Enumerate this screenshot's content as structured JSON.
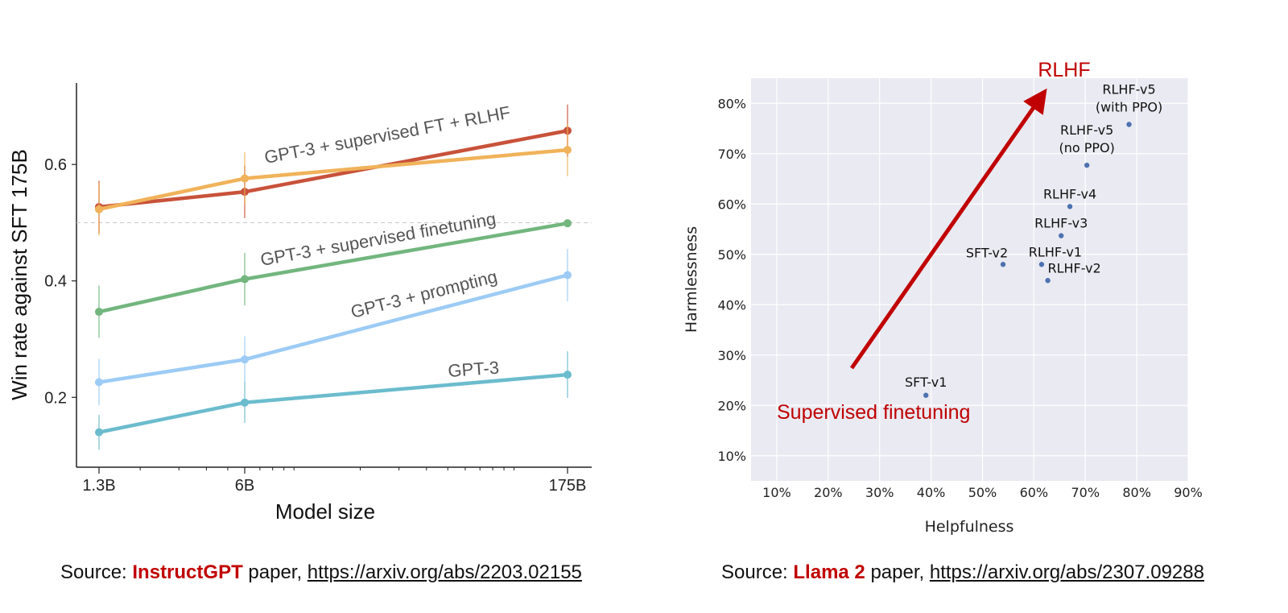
{
  "chart_data": [
    {
      "type": "line",
      "xlabel": "Model size",
      "ylabel": "Win rate against SFT 175B",
      "x": [
        "1.3B",
        "6B",
        "175B"
      ],
      "x_scale": "log",
      "ylim": [
        0.08,
        0.74
      ],
      "yticks": [
        "0.2",
        "0.4",
        "0.6"
      ],
      "reference_line": 0.5,
      "series": [
        {
          "name": "GPT-3 + supervised FT + RLHF",
          "color": "#c8523a",
          "values": [
            0.527,
            0.553,
            0.658
          ],
          "errors": [
            0.045,
            0.045,
            0.045
          ]
        },
        {
          "name": "",
          "color": "#f0b25a",
          "values": [
            0.523,
            0.576,
            0.625
          ],
          "errors": [
            0.045,
            0.045,
            0.045
          ]
        },
        {
          "name": "GPT-3 + supervised finetuning",
          "color": "#72b67e",
          "values": [
            0.347,
            0.403,
            0.499
          ],
          "errors": [
            0.045,
            0.045,
            0.0
          ]
        },
        {
          "name": "GPT-3 + prompting",
          "color": "#9ccbf5",
          "values": [
            0.226,
            0.265,
            0.41
          ],
          "errors": [
            0.04,
            0.04,
            0.045
          ]
        },
        {
          "name": "GPT-3",
          "color": "#6bbccd",
          "values": [
            0.14,
            0.191,
            0.239
          ],
          "errors": [
            0.03,
            0.035,
            0.04
          ]
        }
      ]
    },
    {
      "type": "scatter",
      "xlabel": "Helpfulness",
      "ylabel": "Harmlessness",
      "xlim": [
        0.05,
        0.9
      ],
      "ylim": [
        0.05,
        0.85
      ],
      "xticks": [
        "10%",
        "20%",
        "30%",
        "40%",
        "50%",
        "60%",
        "70%",
        "80%",
        "90%"
      ],
      "yticks": [
        "10%",
        "20%",
        "30%",
        "40%",
        "50%",
        "60%",
        "70%",
        "80%"
      ],
      "grid": true,
      "points": [
        {
          "label": "SFT-v1",
          "x": 0.39,
          "y": 0.22
        },
        {
          "label": "SFT-v2",
          "x": 0.54,
          "y": 0.48
        },
        {
          "label": "RLHF-v1",
          "x": 0.615,
          "y": 0.48
        },
        {
          "label": "RLHF-v2",
          "x": 0.627,
          "y": 0.448
        },
        {
          "label": "RLHF-v3",
          "x": 0.653,
          "y": 0.537
        },
        {
          "label": "RLHF-v4",
          "x": 0.67,
          "y": 0.595
        },
        {
          "label": "RLHF-v5 (no PPO)",
          "label_lines": [
            "RLHF-v5",
            "(no PPO)"
          ],
          "x": 0.703,
          "y": 0.677
        },
        {
          "label": "RLHF-v5 (with PPO)",
          "label_lines": [
            "RLHF-v5",
            "(with PPO)"
          ],
          "x": 0.785,
          "y": 0.758
        }
      ],
      "annotations": {
        "arrow_start_text": "Supervised finetuning",
        "arrow_end_text": "RLHF"
      }
    }
  ],
  "sources": [
    {
      "prefix": "Source: ",
      "name": "InstructGPT",
      "middle": " paper, ",
      "link": "https://arxiv.org/abs/2203.02155"
    },
    {
      "prefix": "Source: ",
      "name": "Llama 2",
      "middle": " paper, ",
      "link": "https://arxiv.org/abs/2307.09288"
    }
  ],
  "colors": {
    "accent_red": "#c00000",
    "plot_bg": "#eaeaf2",
    "point": "#4c72b0"
  }
}
